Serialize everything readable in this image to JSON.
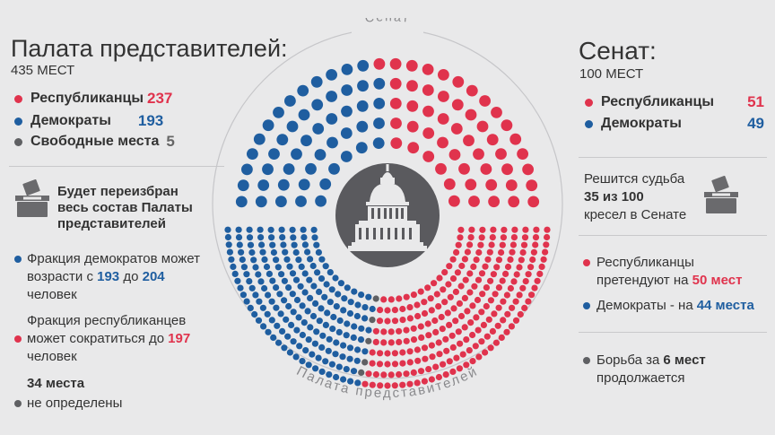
{
  "colors": {
    "republican": "#e0334d",
    "democrat": "#1f5ea0",
    "vacant": "#5f6063",
    "background": "#e9e9ea"
  },
  "left": {
    "title": "Палата представителей:",
    "seats": "435 МЕСТ",
    "legend": [
      {
        "label": "Республиканцы",
        "value": "237",
        "color": "#e0334d"
      },
      {
        "label": "Демократы",
        "value": "193",
        "color": "#1f5ea0"
      },
      {
        "label": "Свободные места",
        "value": "5",
        "color": "#5f6063"
      }
    ],
    "note": {
      "line1": "Будет переизбран",
      "line2": "весь состав Палаты",
      "line3": "представителей"
    },
    "dem": {
      "line1": "Фракция демократов может",
      "pre": "возрасти с",
      "from": "193",
      "mid": "до",
      "to": "204",
      "line3": "человек"
    },
    "rep": {
      "line1": "Фракция республиканцев",
      "pre": "может сократиться до",
      "to": "197",
      "line3": "человек"
    },
    "undecided": {
      "line1": "34 места",
      "line2": "не определены"
    }
  },
  "right": {
    "title": "Сенат:",
    "seats": "100 МЕСТ",
    "legend": [
      {
        "label": "Республиканцы",
        "value": "51",
        "color": "#e0334d"
      },
      {
        "label": "Демократы",
        "value": "49",
        "color": "#1f5ea0"
      }
    ],
    "fate": {
      "line1": "Решится судьба",
      "num": "35 из 100",
      "line3": "кресел в Сенате"
    },
    "rep": {
      "line1": "Республиканцы",
      "pre": "претендуют на",
      "num": "50 мест"
    },
    "dem": {
      "pre": "Демократы - на",
      "num": "44 места"
    },
    "fight": {
      "pre": "Борьба за",
      "num": "6 мест",
      "line2": "продолжается"
    }
  },
  "center": {
    "senate_arc_label": "Сенат",
    "house_arc_label": "Палата представителей",
    "senate_icon": "capitol-dome-icon",
    "ballot_icon": "ballot-box-icon"
  },
  "chart_data": [
    {
      "type": "parliament",
      "title": "Сенат",
      "series": [
        {
          "name": "Республиканцы",
          "value": 51,
          "color": "#e0334d"
        },
        {
          "name": "Демократы",
          "value": 49,
          "color": "#1f5ea0"
        }
      ],
      "total": 100
    },
    {
      "type": "parliament",
      "title": "Палата представителей",
      "series": [
        {
          "name": "Республиканцы",
          "value": 237,
          "color": "#e0334d"
        },
        {
          "name": "Демократы",
          "value": 193,
          "color": "#1f5ea0"
        },
        {
          "name": "Свободные места",
          "value": 5,
          "color": "#5f6063"
        }
      ],
      "total": 435
    }
  ]
}
